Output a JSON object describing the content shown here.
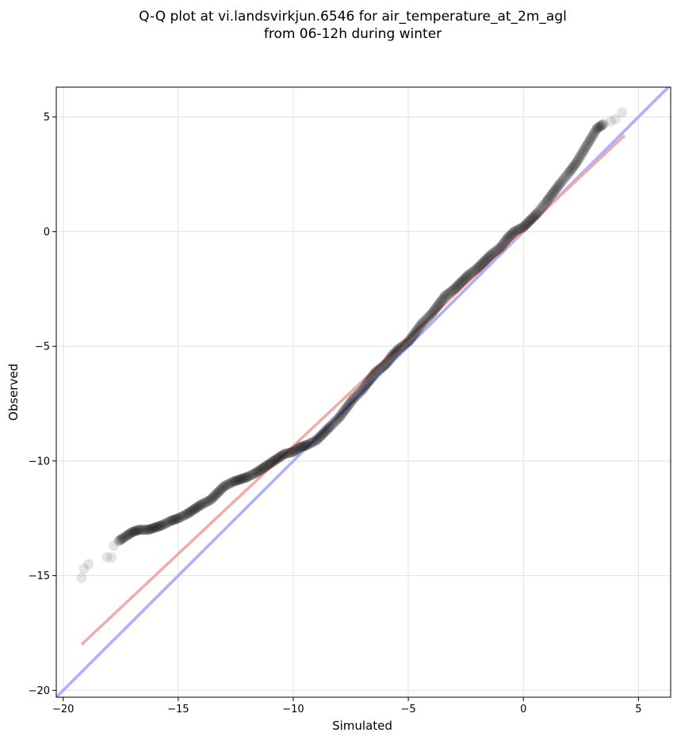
{
  "chart_data": {
    "type": "scatter",
    "title": "Q-Q plot at vi.landsvirkjun.6546 for air_temperature_at_2m_agl",
    "subtitle": "from 06-12h during winter",
    "xlabel": "Simulated",
    "ylabel": "Observed",
    "xlim": [
      -20.3,
      6.4
    ],
    "ylim": [
      -20.3,
      6.3
    ],
    "xticks": [
      -20,
      -15,
      -10,
      -5,
      0,
      5
    ],
    "yticks": [
      -20,
      -15,
      -10,
      -5,
      0,
      5
    ],
    "xtick_labels": [
      "−20",
      "−15",
      "−10",
      "−5",
      "0",
      "5"
    ],
    "ytick_labels": [
      "−20",
      "−15",
      "−10",
      "−5",
      "0",
      "5"
    ],
    "grid": true,
    "lines": [
      {
        "kind": "identity",
        "color": "#aaaaff",
        "x": [
          -20.3,
          6.4
        ],
        "y": [
          -20.3,
          6.4
        ]
      },
      {
        "kind": "fit",
        "color": "#f4a6a6",
        "x": [
          -19.2,
          4.4
        ],
        "y": [
          -18.0,
          4.2
        ]
      }
    ],
    "marker_color": "#000000",
    "series": [
      {
        "x": [
          -19.2,
          -19.1,
          -18.9,
          -18.1,
          -17.9,
          -17.8,
          -17.6,
          -17.3,
          -17.0,
          -16.7,
          -16.3,
          -16.0,
          -15.7,
          -15.3,
          -15.0,
          -14.6,
          -14.3,
          -14.0,
          -13.6,
          -13.3,
          -13.0,
          -12.6,
          -12.3,
          -12.0,
          -11.6,
          -11.3,
          -11.0,
          -10.7,
          -10.4,
          -10.0,
          -9.7,
          -9.4,
          -9.0,
          -8.7,
          -8.4,
          -8.0,
          -7.7,
          -7.4,
          -7.0,
          -6.7,
          -6.4,
          -6.0,
          -5.7,
          -5.4,
          -5.0,
          -4.7,
          -4.4,
          -4.0,
          -3.7,
          -3.4,
          -3.0,
          -2.7,
          -2.4,
          -2.0,
          -1.7,
          -1.4,
          -1.0,
          -0.7,
          -0.4,
          0.0,
          0.3,
          0.6,
          1.0,
          1.3,
          1.6,
          2.0,
          2.3,
          2.6,
          2.9,
          3.2,
          3.5,
          3.8,
          4.0,
          4.3
        ],
        "y": [
          -15.1,
          -14.7,
          -14.5,
          -14.2,
          -14.2,
          -13.7,
          -13.5,
          -13.3,
          -13.1,
          -13.0,
          -13.0,
          -12.9,
          -12.8,
          -12.6,
          -12.5,
          -12.3,
          -12.1,
          -11.9,
          -11.7,
          -11.4,
          -11.1,
          -10.9,
          -10.8,
          -10.7,
          -10.5,
          -10.3,
          -10.1,
          -9.9,
          -9.7,
          -9.6,
          -9.4,
          -9.3,
          -9.1,
          -8.8,
          -8.5,
          -8.1,
          -7.7,
          -7.3,
          -6.9,
          -6.5,
          -6.1,
          -5.8,
          -5.4,
          -5.1,
          -4.8,
          -4.4,
          -4.0,
          -3.6,
          -3.2,
          -2.8,
          -2.5,
          -2.2,
          -1.9,
          -1.6,
          -1.3,
          -1.0,
          -0.7,
          -0.3,
          0.0,
          0.2,
          0.5,
          0.8,
          1.3,
          1.7,
          2.1,
          2.6,
          3.0,
          3.5,
          4.0,
          4.5,
          4.7,
          4.8,
          4.9,
          5.2
        ]
      }
    ]
  }
}
